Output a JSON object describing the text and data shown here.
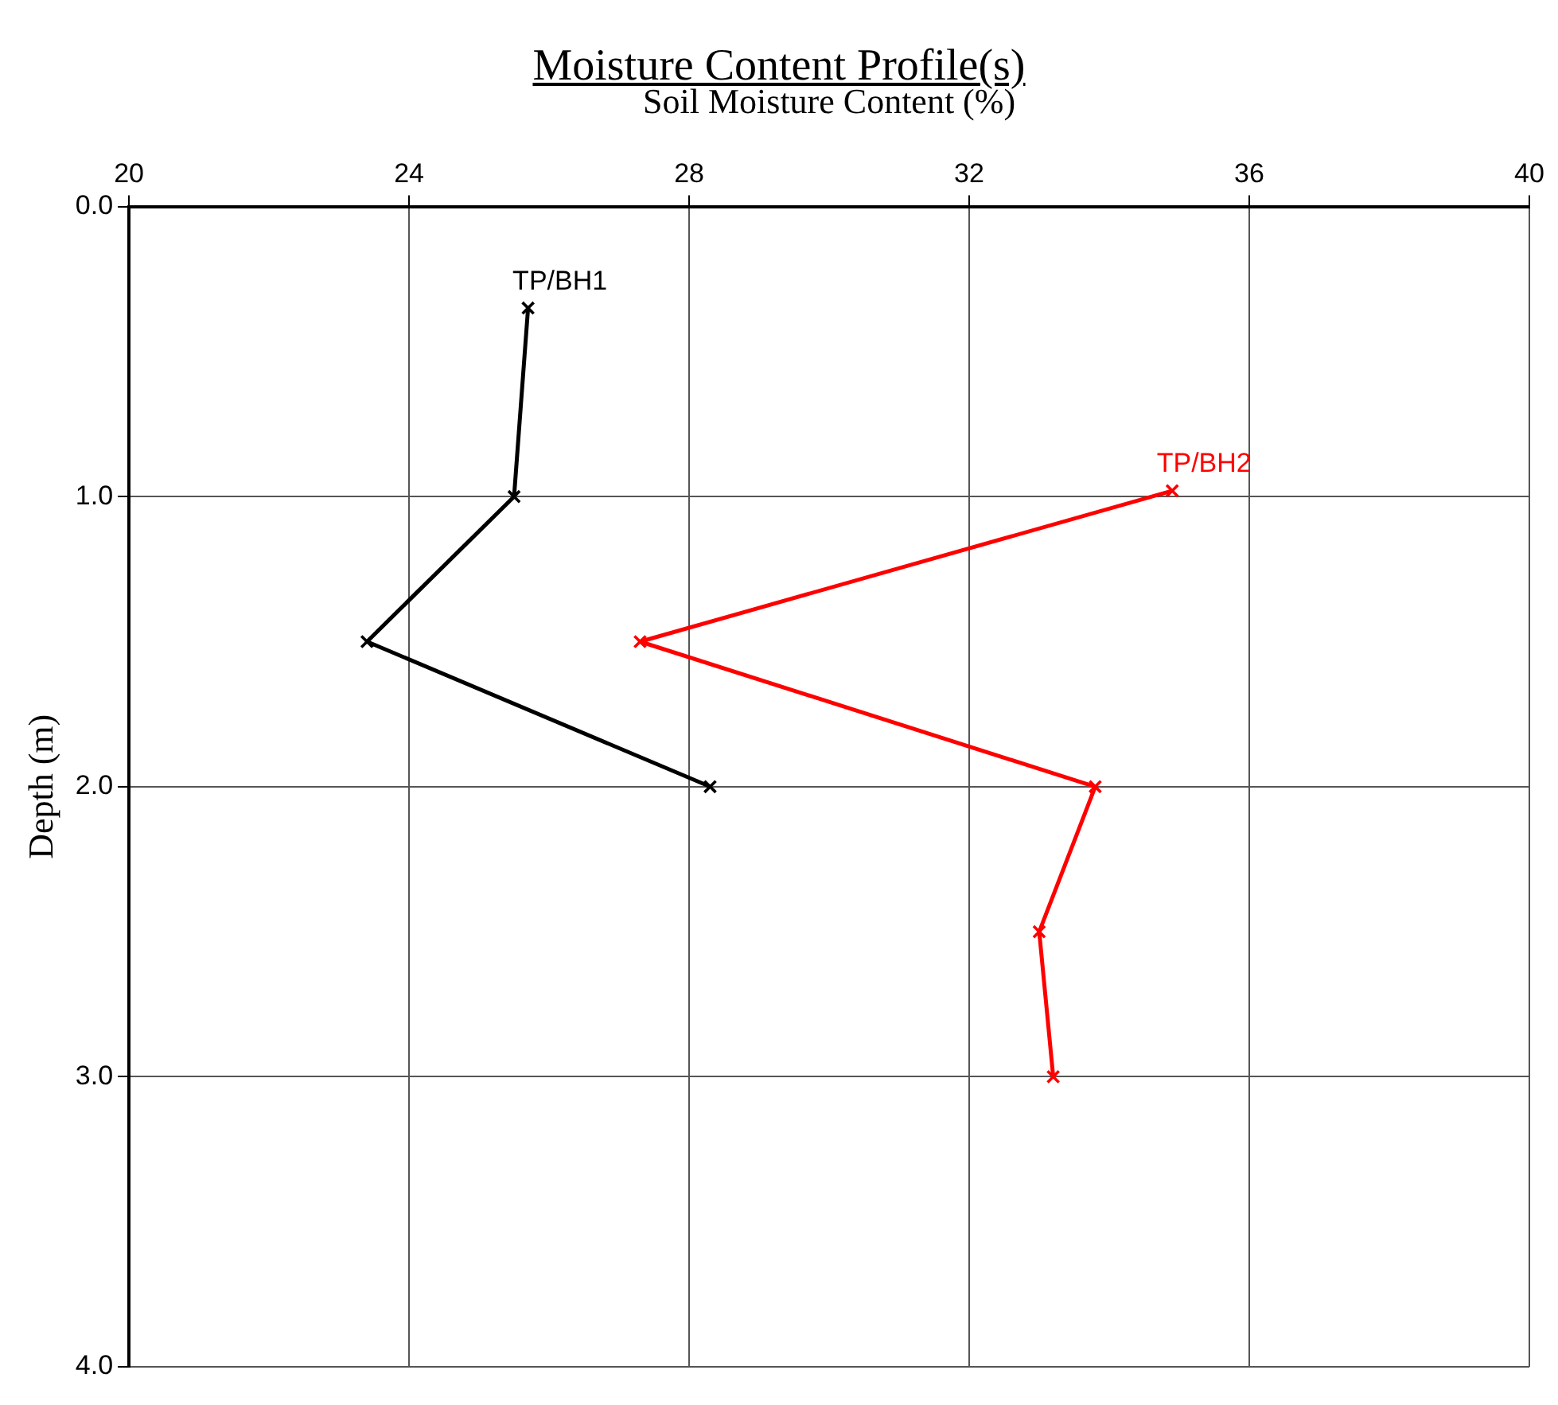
{
  "chart_data": {
    "type": "line",
    "title": "Moisture Content Profile(s)",
    "xlabel": "Soil Moisture Content (%)",
    "ylabel": "Depth (m)",
    "series": [
      {
        "name": "TP/BH1",
        "color": "#000000",
        "x": [
          25.7,
          25.5,
          23.4,
          28.3
        ],
        "values": [
          0.35,
          1.0,
          1.5,
          2.0
        ]
      },
      {
        "name": "TP/BH2",
        "color": "#ff0000",
        "x": [
          34.9,
          27.3,
          33.8,
          33.0,
          33.2
        ],
        "values": [
          0.98,
          1.5,
          2.0,
          2.5,
          3.0
        ]
      }
    ],
    "xlim": [
      20,
      40
    ],
    "xticks": [
      20,
      24,
      28,
      32,
      36,
      40
    ],
    "ylim": [
      4.0,
      0.0
    ],
    "yticks": [
      {
        "value": 0,
        "label": "0.0"
      },
      {
        "value": 1,
        "label": "1.0"
      },
      {
        "value": 2,
        "label": "2.0"
      },
      {
        "value": 3,
        "label": "3.0"
      },
      {
        "value": 4,
        "label": "4.0"
      }
    ],
    "grid": true,
    "legend": false,
    "marker": "cross",
    "line_style": "solid"
  }
}
